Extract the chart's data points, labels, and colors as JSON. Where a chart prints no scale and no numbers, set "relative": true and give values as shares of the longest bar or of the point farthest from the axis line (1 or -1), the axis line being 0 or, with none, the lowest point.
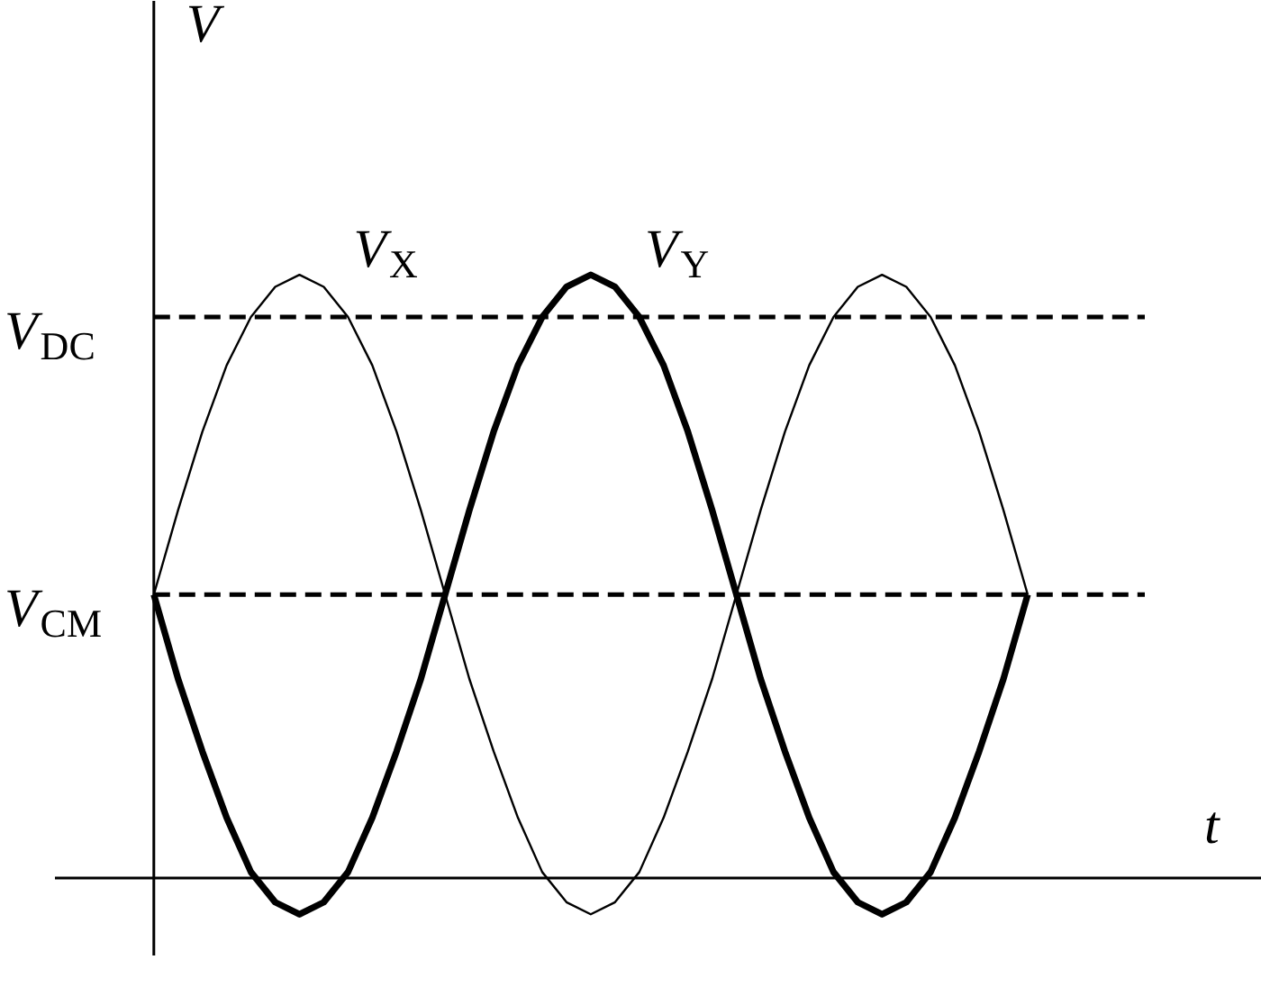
{
  "chart_data": {
    "type": "line",
    "xlabel": "t",
    "ylabel": "V",
    "relative": true,
    "grid": false,
    "legend": false,
    "line_style": "solid",
    "categories": [
      null,
      null,
      null,
      null,
      null,
      null,
      null,
      null,
      null,
      null,
      null,
      null,
      null,
      null,
      null,
      null,
      null,
      null,
      null,
      null,
      null,
      null,
      null,
      null,
      null,
      null,
      null,
      null,
      null,
      null,
      null,
      null,
      null,
      null,
      null,
      null,
      null
    ],
    "series": [
      {
        "name": "V$_{X}$",
        "color": "#000000",
        "values": [
          0.47,
          0.61,
          0.74,
          0.85,
          0.93,
          0.98,
          1.0,
          0.98,
          0.93,
          0.85,
          0.74,
          0.61,
          0.47,
          0.33,
          0.21,
          0.1,
          0.01,
          -0.04,
          -0.06,
          -0.04,
          0.01,
          0.1,
          0.21,
          0.33,
          0.47,
          0.61,
          0.74,
          0.85,
          0.93,
          0.98,
          1.0,
          0.98,
          0.93,
          0.85,
          0.74,
          0.61,
          0.47
        ]
      },
      {
        "name": "V$_{Y}$",
        "color": "#000000",
        "values": [
          0.47,
          0.33,
          0.21,
          0.1,
          0.01,
          -0.04,
          -0.06,
          -0.04,
          0.01,
          0.1,
          0.21,
          0.33,
          0.47,
          0.61,
          0.74,
          0.85,
          0.93,
          0.98,
          1.0,
          0.98,
          0.93,
          0.85,
          0.74,
          0.61,
          0.47,
          0.33,
          0.21,
          0.1,
          0.01,
          -0.04,
          -0.06,
          -0.04,
          0.01,
          0.1,
          0.21,
          0.33,
          0.47
        ]
      }
    ],
    "ref_lines": [
      {
        "axis": "y",
        "value": 0.93,
        "label": "V$_{DC}$",
        "color": "#000000",
        "line_style": "dashed"
      },
      {
        "axis": "y",
        "value": 0.47,
        "label": "V$_{CM}$",
        "color": "#000000",
        "line_style": "dashed"
      }
    ]
  }
}
